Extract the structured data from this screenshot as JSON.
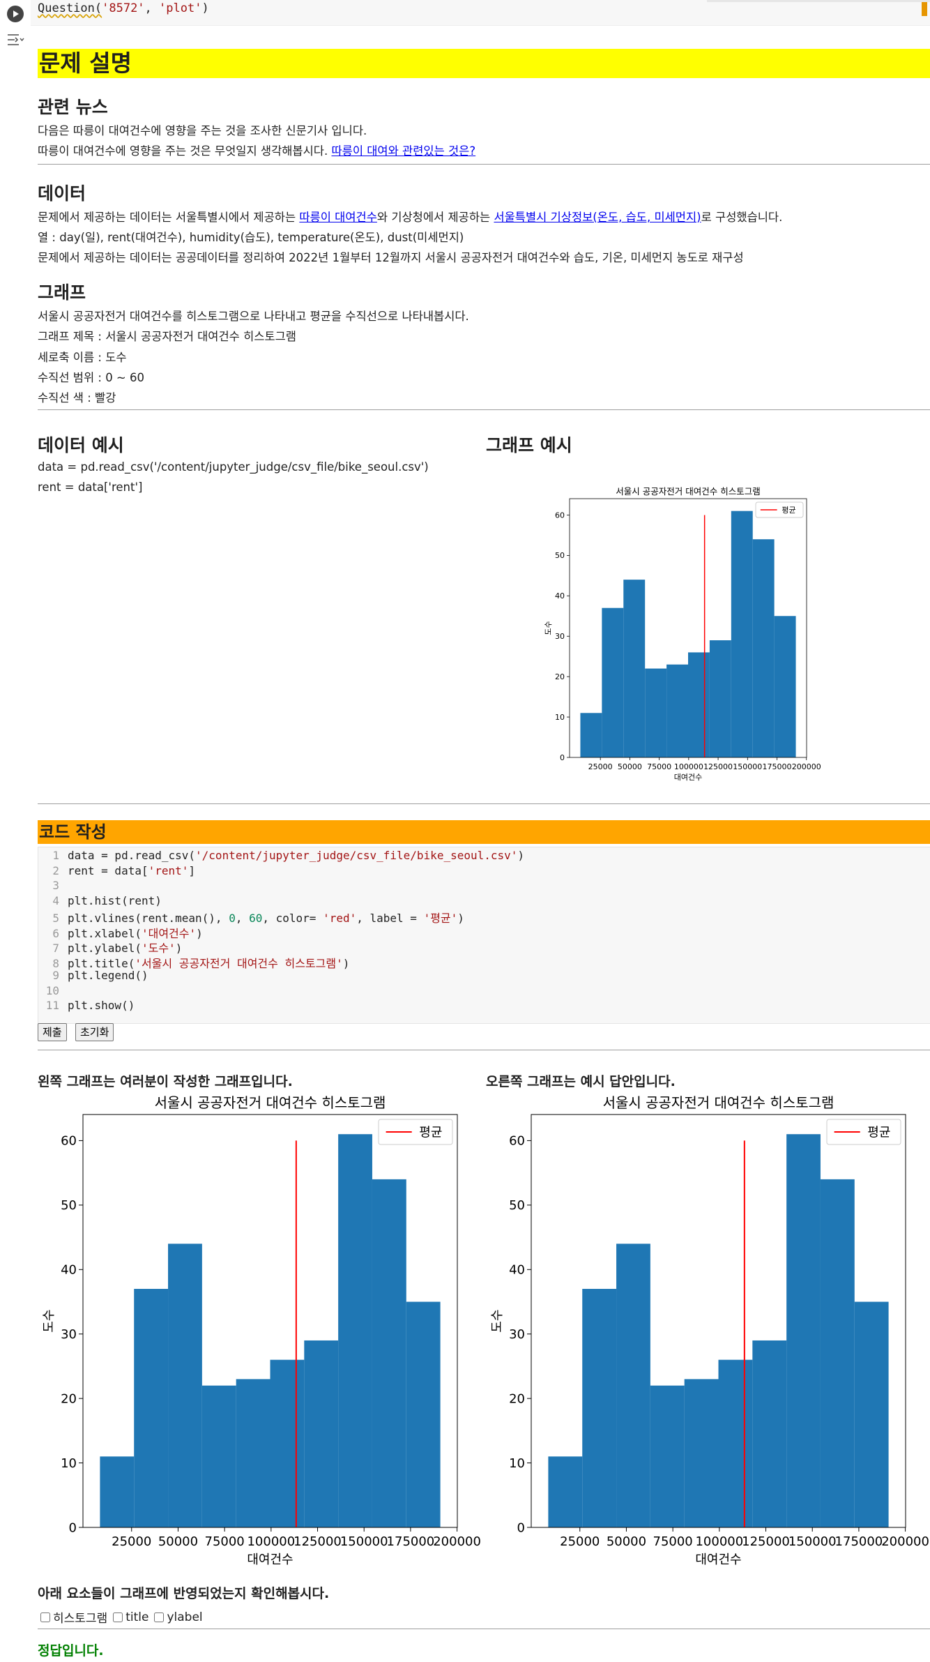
{
  "top_cell": {
    "code_prefix": "Question(",
    "code_arg1": "'8572'",
    "code_sep": ", ",
    "code_arg2": "'plot'",
    "code_suffix": ")"
  },
  "problem": {
    "header": "문제 설명",
    "news_heading": "관련 뉴스",
    "news_line1": "다음은 따릉이 대여건수에 영향을 주는 것을 조사한 신문기사 입니다.",
    "news_line2_prefix": "따릉이 대여건수에 영향을 주는 것은 무엇일지 생각해봅시다. ",
    "news_link": "따릉이 대여와 관련있는 것은?",
    "data_heading": "데이터",
    "data_line1_a": "문제에서 제공하는 데이터는 서울특별시에서 제공하는 ",
    "data_link1": "따릉이 대여건수",
    "data_line1_b": "와 기상청에서 제공하는 ",
    "data_link2": "서울특별시 기상정보(온도, 습도, 미세먼지)",
    "data_line1_c": "로 구성했습니다.",
    "data_line2": "열 : day(일), rent(대여건수), humidity(습도), temperature(온도), dust(미세먼지)",
    "data_line3": "문제에서 제공하는 데이터는 공공데이터를 정리하여 2022년 1월부터 12월까지 서울시 공공자전거 대여건수와 습도, 기온, 미세먼지 농도로 재구성",
    "graph_heading": "그래프",
    "graph_line1": "서울시 공공자전거 대여건수를 히스토그램으로 나타내고 평균을 수직선으로 나타내봅시다.",
    "graph_line2": "그래프 제목 : 서울시 공공자전거 대여건수 히스토그램",
    "graph_line3": "세로축 이름 : 도수",
    "graph_line4": "수직선 범위 : 0 ~ 60",
    "graph_line5": "수직선 색 : 빨강",
    "example_data_heading": "데이터 예시",
    "example_data_line1": "data = pd.read_csv('/content/jupyter_judge/csv_file/bike_seoul.csv')",
    "example_data_line2": "rent = data['rent']",
    "example_graph_heading": "그래프 예시"
  },
  "code_section": {
    "header": "코드 작성",
    "lines": [
      {
        "n": "1",
        "pre": "data = pd.read_csv(",
        "str": "'/content/jupyter_judge/csv_file/bike_seoul.csv'",
        "post": ")"
      },
      {
        "n": "2",
        "pre": "rent = data[",
        "str": "'rent'",
        "post": "]"
      },
      {
        "n": "3",
        "pre": "",
        "str": "",
        "post": ""
      },
      {
        "n": "4",
        "pre": "plt.hist(rent)",
        "str": "",
        "post": ""
      },
      {
        "n": "5",
        "pre": "plt.vlines(rent.mean(), ",
        "num1": "0",
        "mid": ", ",
        "num2": "60",
        "mid2": ", color= ",
        "str": "'red'",
        "mid3": ", label = ",
        "str2": "'평균'",
        "post": ")"
      },
      {
        "n": "6",
        "pre": "plt.xlabel(",
        "str": "'대여건수'",
        "post": ")"
      },
      {
        "n": "7",
        "pre": "plt.ylabel(",
        "str": "'도수'",
        "post": ")"
      },
      {
        "n": "8",
        "pre": "plt.title(",
        "str": "'서울시 공공자전거 대여건수 히스토그램'",
        "post": ")"
      },
      {
        "n": "9",
        "pre": "plt.legend()",
        "str": "",
        "post": ""
      },
      {
        "n": "10",
        "pre": "",
        "str": "",
        "post": ""
      },
      {
        "n": "11",
        "pre": "plt.show()",
        "str": "",
        "post": ""
      }
    ],
    "submit_label": "제출",
    "reset_label": "초기화"
  },
  "results": {
    "left_caption": "왼쪽 그래프는 여러분이 작성한 그래프입니다.",
    "right_caption": "오른쪽 그래프는 예시 답안입니다.",
    "check_prompt": "아래 요소들이 그래프에 반영되었는지 확인해봅시다.",
    "check_items": [
      "히스토그램",
      "title",
      "ylabel"
    ],
    "correct_msg": "정답입니다."
  },
  "chart_data": {
    "type": "bar",
    "title": "서울시 공공자전거 대여건수 히스토그램",
    "xlabel": "대여건수",
    "ylabel": "도수",
    "bin_edges": [
      8000,
      26300,
      44600,
      62900,
      81200,
      99500,
      117800,
      136100,
      154400,
      172700,
      191000
    ],
    "values": [
      11,
      37,
      44,
      22,
      23,
      26,
      29,
      61,
      54,
      35
    ],
    "bar_color": "#1f77b4",
    "vline": {
      "x": 113500,
      "ymin": 0,
      "ymax": 60,
      "color": "#ff0000",
      "label": "평균"
    },
    "xticks": [
      25000,
      50000,
      75000,
      100000,
      125000,
      150000,
      175000,
      200000
    ],
    "yticks": [
      0,
      10,
      20,
      30,
      40,
      50,
      60
    ],
    "xlim": [
      -1150,
      200150
    ],
    "ylim": [
      0,
      64.05
    ],
    "legend_position": "upper right",
    "grid": false
  }
}
